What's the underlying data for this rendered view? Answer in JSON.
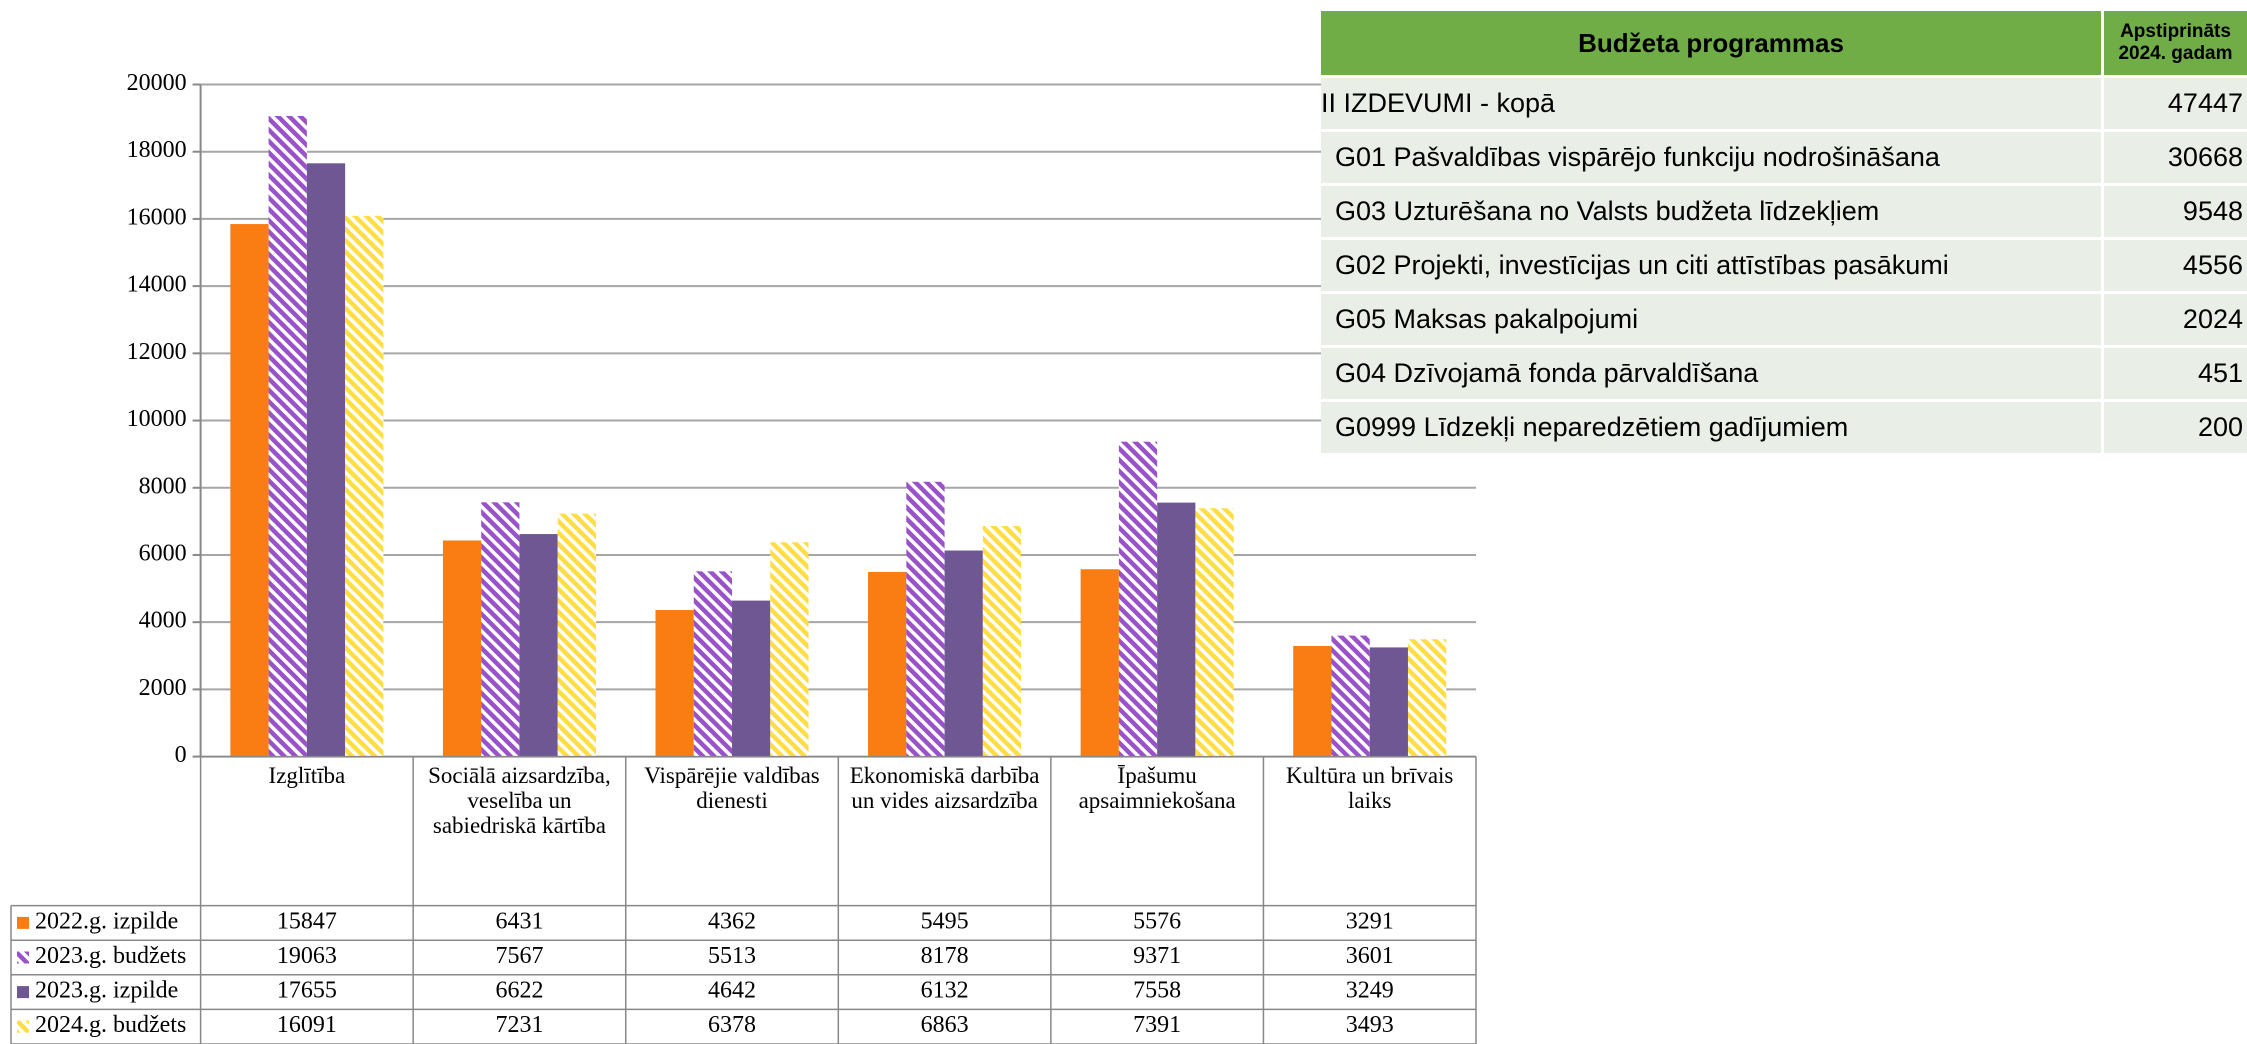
{
  "chart_data": {
    "type": "bar",
    "categories": [
      "Izglītība",
      "Sociālā aizsardzība, veselība un sabiedriskā kārtība",
      "Vispārējie valdības dienesti",
      "Ekonomiskā darbība un vides aizsardzība",
      "Īpašumu apsaimniekošana",
      "Kultūra un brīvais laiks"
    ],
    "series": [
      {
        "name": "2022.g. izpilde",
        "color": "#f97d12",
        "values": [
          15847,
          6431,
          4362,
          5495,
          5576,
          3291
        ]
      },
      {
        "name": "2023.g. budžets",
        "color": "#9a52c9",
        "values": [
          19063,
          7567,
          5513,
          8178,
          9371,
          3601
        ]
      },
      {
        "name": "2023.g. izpilde",
        "color": "#6e5793",
        "values": [
          17655,
          6622,
          4642,
          6132,
          7558,
          3249
        ]
      },
      {
        "name": "2024.g. budžets",
        "color": "#ffdd44",
        "values": [
          16091,
          7231,
          6378,
          6863,
          7391,
          3493
        ]
      }
    ],
    "ylim": [
      0,
      20000
    ],
    "yticks": [
      0,
      2000,
      4000,
      6000,
      8000,
      10000,
      12000,
      14000,
      16000,
      18000,
      20000
    ],
    "grid": true
  },
  "side_table": {
    "headers": [
      "Budžeta programmas",
      "Apstiprināts 2024. gadam"
    ],
    "rows": [
      [
        "II IZDEVUMI - kopā",
        47447
      ],
      [
        "G01 Pašvaldības vispārējo funkciju nodrošināšana",
        30668
      ],
      [
        "G03 Uzturēšana no Valsts budžeta līdzekļiem",
        9548
      ],
      [
        "G02 Projekti, investīcijas un citi attīstības pasākumi",
        4556
      ],
      [
        "G05 Maksas pakalpojumi",
        2024
      ],
      [
        "G04 Dzīvojamā fonda pārvaldīšana",
        451
      ],
      [
        "G0999 Līdzekļi neparedzētiem gadījumiem",
        200
      ]
    ]
  }
}
